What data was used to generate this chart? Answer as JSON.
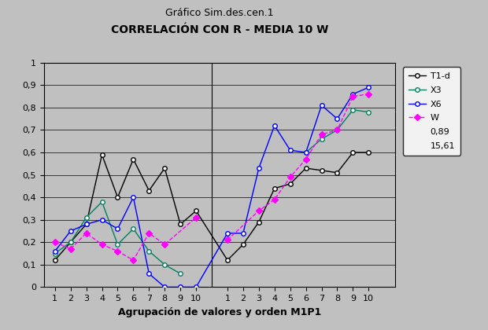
{
  "title1": "Gráfico Sim.des.cen.1",
  "title2": "CORRELACIÓN CON R - MEDIA 10 W",
  "xlabel": "Agrupación de valores y orden M1P1",
  "ylim": [
    0,
    1
  ],
  "yticks": [
    0,
    0.1,
    0.2,
    0.3,
    0.4,
    0.5,
    0.6,
    0.7,
    0.8,
    0.9,
    1
  ],
  "T1d_left": [
    0.12,
    0.2,
    0.28,
    0.59,
    0.4,
    0.57,
    0.43,
    0.53,
    0.28,
    0.34
  ],
  "T1d_right": [
    0.12,
    0.19,
    0.29,
    0.44,
    0.46,
    0.53,
    0.52,
    0.51,
    0.6,
    0.6
  ],
  "X3_left": [
    0.15,
    0.2,
    0.31,
    0.38,
    0.19,
    0.26,
    0.16,
    0.1,
    0.06,
    null
  ],
  "X3_right": [
    null,
    null,
    null,
    null,
    null,
    0.6,
    0.66,
    0.7,
    0.79,
    0.78
  ],
  "X6_left": [
    0.16,
    0.25,
    0.28,
    0.3,
    0.26,
    0.4,
    0.06,
    0.0,
    0.0,
    0.0
  ],
  "X6_right": [
    0.24,
    0.24,
    0.53,
    0.72,
    0.61,
    0.6,
    0.81,
    0.75,
    0.86,
    0.89
  ],
  "W_left": [
    0.2,
    0.17,
    0.24,
    0.19,
    0.16,
    0.12,
    0.24,
    0.19,
    null,
    0.31
  ],
  "W_right": [
    0.21,
    null,
    0.34,
    0.39,
    0.49,
    0.57,
    0.68,
    0.7,
    0.85,
    0.86
  ],
  "legend_values": [
    "0,89",
    "15,61"
  ],
  "color_T1d": "#000000",
  "color_X3": "#008060",
  "color_X6": "#0000ff",
  "color_W": "#ff00ff",
  "bg_color": "#c0c0c0"
}
